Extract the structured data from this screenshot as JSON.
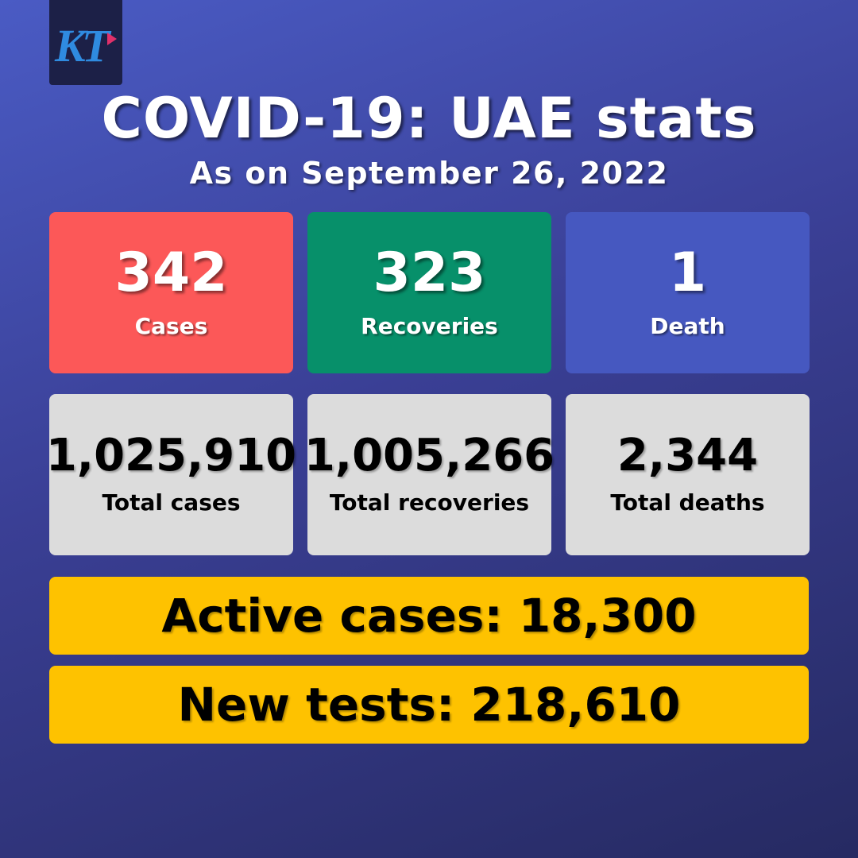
{
  "header": {
    "logo_text": "KT",
    "title": "COVID-19: UAE stats",
    "subtitle": "As on September 26, 2022"
  },
  "daily": [
    {
      "value": "342",
      "label": "Cases",
      "color": "#fc5858"
    },
    {
      "value": "323",
      "label": "Recoveries",
      "color": "#07906a"
    },
    {
      "value": "1",
      "label": "Death",
      "color": "#4658c0"
    }
  ],
  "totals": [
    {
      "value": "1,025,910",
      "label": "Total cases"
    },
    {
      "value": "1,005,266",
      "label": "Total recoveries"
    },
    {
      "value": "2,344",
      "label": "Total deaths"
    }
  ],
  "active": {
    "text": "Active cases: 18,300"
  },
  "tests": {
    "text": "New tests: 218,610"
  },
  "colors": {
    "background": "#3a3f95",
    "highlight": "#fec200",
    "card_grey": "#dcdcdc"
  }
}
